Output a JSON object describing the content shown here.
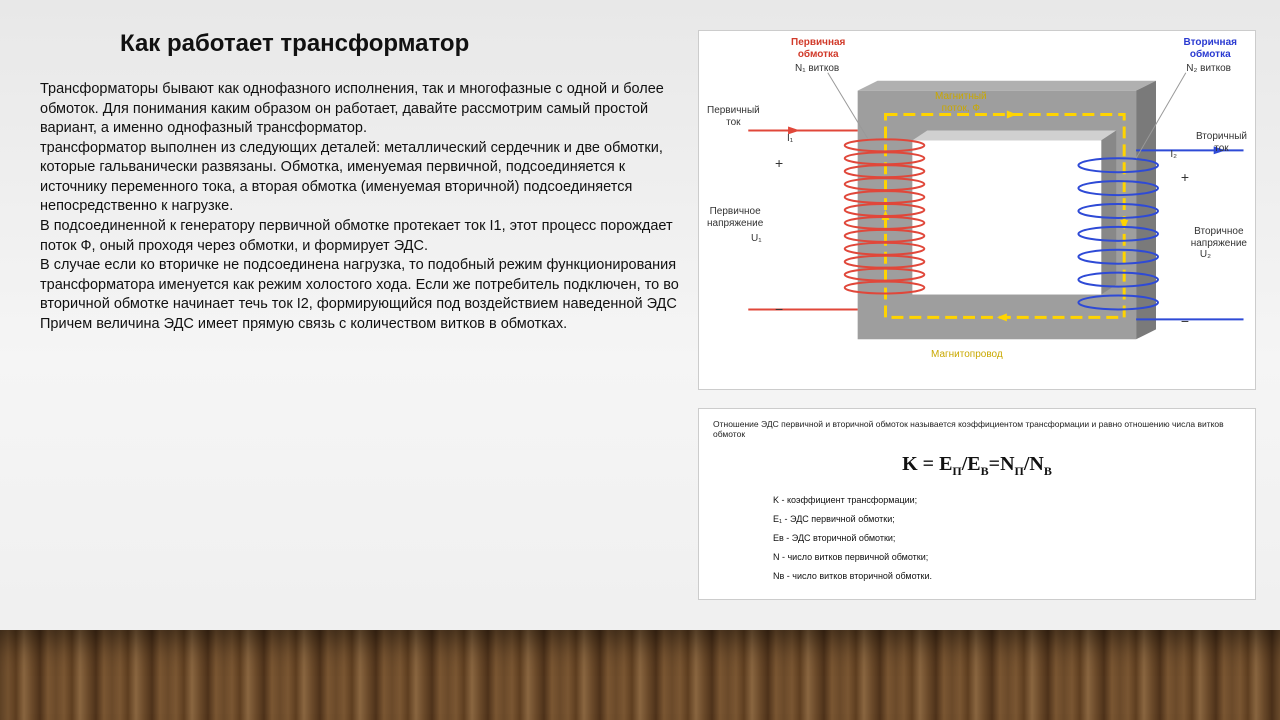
{
  "title": "Как работает трансформатор",
  "paragraphs": {
    "p1": "Трансформаторы бывают как однофазного исполнения, так и многофазные с одной и более обмоток. Для понимания каким образом он работает, давайте рассмотрим самый простой вариант, а именно однофазный трансформатор.",
    "p2": "трансформатор выполнен из следующих деталей: металлический сердечник и две обмотки, которые гальванически развязаны. Обмотка, именуемая первичной, подсоединяется к источнику переменного тока, а вторая обмотка (именуемая вторичной) подсоединяется непосредственно к нагрузке.",
    "p3": "В подсоединенной к генератору первичной обмотке протекает ток I1, этот процесс порождает поток Ф, оный проходя через обмотки, и формирует ЭДС.",
    "p4": "В случае если ко вторичке не подсоединена нагрузка, то подобный режим функционирования трансформатора именуется как режим холостого хода. Если же потребитель подключен, то во вторичной обмотке начинает течь ток I2, формирующийся под воздействием наведенной ЭДС",
    "p5": "Причем величина ЭДС имеет прямую связь с количеством витков в обмотках."
  },
  "diagram": {
    "labels": {
      "primary_winding_title": "Первичная\nобмотка",
      "primary_winding_turns": "N₁ витков",
      "secondary_winding_title": "Вторичная\nобмотка",
      "secondary_winding_turns": "N₂ витков",
      "primary_current": "Первичный\nток",
      "secondary_current": "Вторичный\nток",
      "primary_voltage": "Первичное\nнапряжение",
      "secondary_voltage": "Вторичное\nнапряжение",
      "i1": "I₁",
      "i2": "I₂",
      "u1": "U₁",
      "u2": "U₂",
      "flux": "Магнитный\nпоток, Ф",
      "core": "Магнитопровод",
      "plus": "+",
      "minus": "−"
    },
    "colors": {
      "primary_title": "#d13a2a",
      "secondary_title": "#2a3ad1",
      "core_fill": "#9e9e9e",
      "core_top": "#b0b0b0",
      "core_side": "#7a7a7a",
      "flux_stroke": "#ffd400",
      "primary_wire": "#e0473a",
      "secondary_wire": "#2e4ad6"
    }
  },
  "formula": {
    "description": "Отношение ЭДС первичной и вторичной обмоток называется коэффициентом трансформации и равно отношению числа витков обмоток",
    "main_lhs": "K = E",
    "sub_p": "П",
    "main_mid": "/E",
    "sub_b": "В",
    "main_eq": "=N",
    "main_div": "/N",
    "legend": {
      "k": "K - коэффициент трансформации;",
      "e1": "E₁ - ЭДС первичной обмотки;",
      "eb": "Eв - ЭДС вторичной обмотки;",
      "n": "N - число витков первичной обмотки;",
      "nb": "Nв - число витков вторичной обмотки."
    }
  }
}
